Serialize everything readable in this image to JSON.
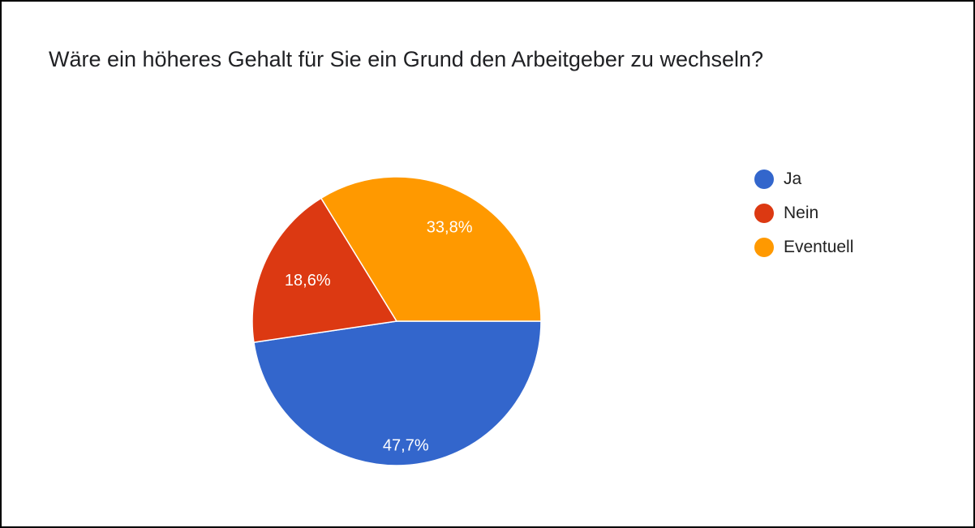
{
  "chart_data": {
    "type": "pie",
    "title": "Wäre ein höheres Gehalt für Sie ein Grund den Arbeitgeber zu wechseln?",
    "slices": [
      {
        "label": "Ja",
        "value": 47.7,
        "display": "47,7%",
        "color": "#3366cc"
      },
      {
        "label": "Nein",
        "value": 18.6,
        "display": "18,6%",
        "color": "#dc3912"
      },
      {
        "label": "Eventuell",
        "value": 33.8,
        "display": "33,8%",
        "color": "#ff9900"
      }
    ],
    "legend_position": "right"
  }
}
